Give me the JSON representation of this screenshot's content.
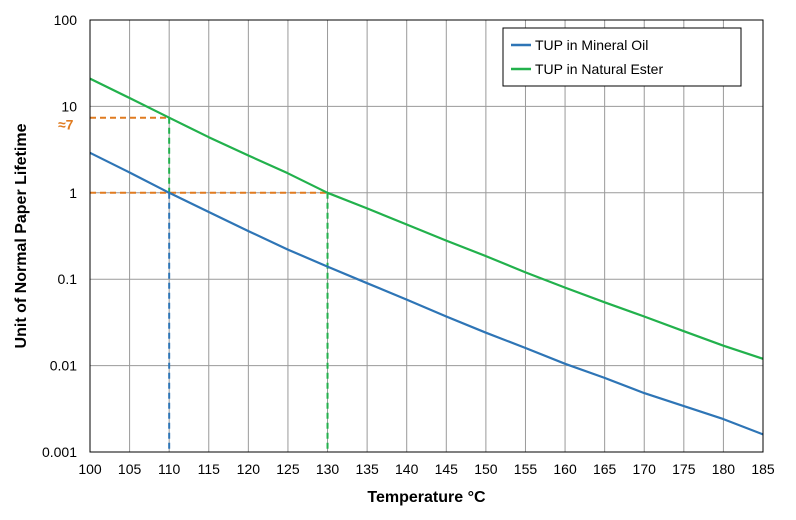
{
  "chart_data": {
    "type": "line",
    "title": "",
    "xlabel": "Temperature °C",
    "ylabel": "Unit of Normal Paper Lifetime",
    "xlim": [
      100,
      185
    ],
    "ylim": [
      0.001,
      100
    ],
    "yscale": "log",
    "grid": true,
    "legend_position": "top-right",
    "x_ticks": [
      "100",
      "105",
      "110",
      "115",
      "120",
      "125",
      "130",
      "135",
      "140",
      "145",
      "150",
      "155",
      "160",
      "165",
      "170",
      "175",
      "180",
      "185"
    ],
    "y_ticks": [
      "0.001",
      "0.01",
      "0.1",
      "1",
      "10",
      "100"
    ],
    "colors": {
      "mineral_oil": "#2e75b6",
      "natural_ester": "#22b14c",
      "guide_orange": "#e07b20"
    },
    "series": [
      {
        "name": "TUP in Mineral Oil",
        "color": "#2e75b6",
        "x": [
          100,
          105,
          110,
          115,
          120,
          125,
          130,
          135,
          140,
          145,
          150,
          155,
          160,
          165,
          170,
          175,
          180,
          185
        ],
        "y": [
          2.9,
          1.72,
          1.0,
          0.6,
          0.36,
          0.22,
          0.14,
          0.09,
          0.058,
          0.037,
          0.024,
          0.016,
          0.0105,
          0.0072,
          0.0048,
          0.0034,
          0.0024,
          0.0016
        ]
      },
      {
        "name": "TUP in Natural Ester",
        "color": "#22b14c",
        "x": [
          100,
          105,
          110,
          115,
          120,
          125,
          130,
          135,
          140,
          145,
          150,
          155,
          160,
          165,
          170,
          175,
          180,
          185
        ],
        "y": [
          21,
          12.5,
          7.4,
          4.4,
          2.7,
          1.68,
          1.0,
          0.66,
          0.43,
          0.28,
          0.185,
          0.12,
          0.08,
          0.054,
          0.037,
          0.025,
          0.017,
          0.012
        ]
      }
    ],
    "annotations": [
      {
        "label": "≈7",
        "y": 7.4,
        "x": 110,
        "color": "#e07b20"
      },
      {
        "x": 110,
        "y": 1,
        "color": "#2e75b6"
      },
      {
        "x": 130,
        "y": 1,
        "color": "#22b14c"
      }
    ]
  }
}
